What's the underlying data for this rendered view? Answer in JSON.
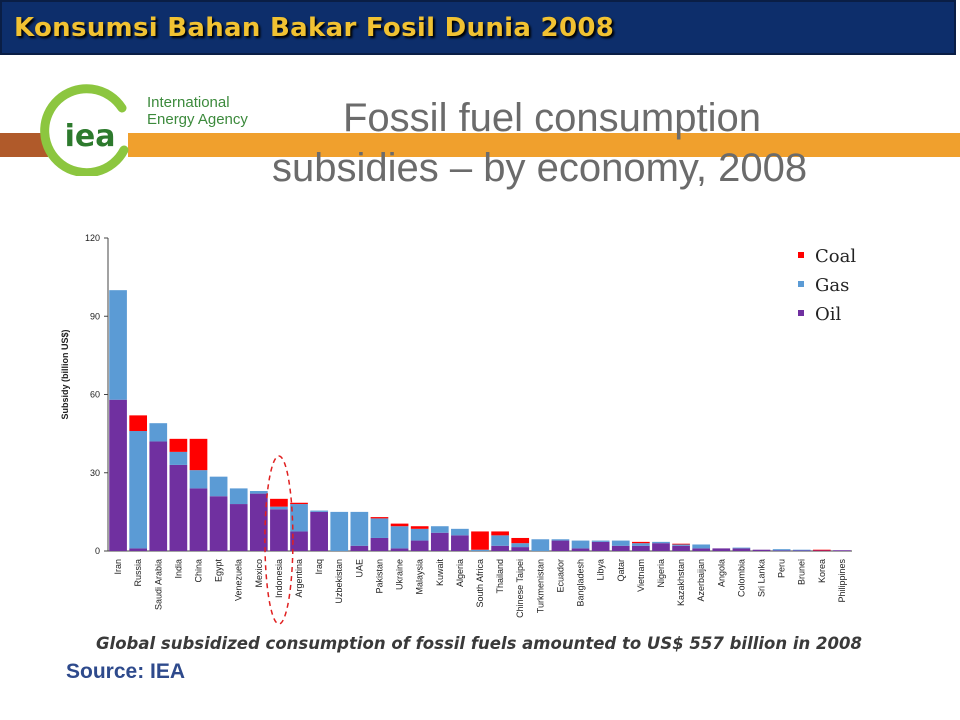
{
  "slide": {
    "title": "Konsumsi Bahan Bakar Fosil Dunia 2008",
    "colors": {
      "title_bar": "#0d2e6b",
      "title_text": "#f1c232",
      "accent_bar": "#f0a02d",
      "accent_left": "#b05a2a"
    }
  },
  "logo": {
    "text": "iea",
    "agency_line1": "International",
    "agency_line2": "Energy Agency",
    "icon": "iea-logo-icon"
  },
  "headline": {
    "line1": "Fossil fuel consumption",
    "line2": "subsidies – by economy, 2008"
  },
  "chart_data": {
    "type": "bar",
    "stacked": true,
    "ylabel": "Subsidy (billion US$)",
    "ylim": [
      0,
      120
    ],
    "yticks": [
      0,
      30,
      60,
      90,
      120
    ],
    "grid": false,
    "legend_placement": "top-right",
    "categories": [
      "Iran",
      "Russia",
      "Saudi Arabia",
      "India",
      "China",
      "Egypt",
      "Venezuela",
      "Mexico",
      "Indonesia",
      "Argentina",
      "Iraq",
      "Uzbekistan",
      "UAE",
      "Pakistan",
      "Ukraine",
      "Malaysia",
      "Kuwait",
      "Algeria",
      "South Africa",
      "Thailand",
      "Chinese Taipei",
      "Turkmenistan",
      "Ecuador",
      "Bangladesh",
      "Libya",
      "Qatar",
      "Vietnam",
      "Nigeria",
      "Kazakhstan",
      "Azerbaijan",
      "Angola",
      "Colombia",
      "Sri Lanka",
      "Peru",
      "Brunei",
      "Korea",
      "Philippines"
    ],
    "series": [
      {
        "name": "Oil",
        "color": "#7030a0",
        "values": [
          58,
          1,
          42,
          33,
          24,
          21,
          18,
          22,
          16,
          7.5,
          15,
          0,
          2,
          5,
          1,
          4,
          7,
          6,
          0,
          2,
          1.5,
          0,
          4,
          1,
          3.5,
          2,
          2,
          3,
          2,
          1,
          1,
          1,
          0.5,
          0.2,
          0.2,
          0.2,
          0.3
        ]
      },
      {
        "name": "Gas",
        "color": "#5b9bd5",
        "values": [
          42,
          45,
          7,
          5,
          7,
          7.5,
          6,
          1,
          1,
          10.5,
          0.5,
          15,
          13,
          7.5,
          8.5,
          4.5,
          2.5,
          2.5,
          0.5,
          4,
          1.5,
          4.5,
          0.5,
          3,
          0.5,
          2,
          1,
          0.5,
          0.5,
          1.5,
          0,
          0.3,
          0,
          0.5,
          0.3,
          0,
          0
        ]
      },
      {
        "name": "Coal",
        "color": "#ff0000",
        "values": [
          0,
          6,
          0,
          5,
          12,
          0,
          0,
          0,
          3,
          0.5,
          0,
          0,
          0,
          0.5,
          1,
          1,
          0,
          0,
          7,
          1.5,
          2,
          0,
          0,
          0,
          0,
          0,
          0.5,
          0,
          0.3,
          0,
          0,
          0,
          0,
          0,
          0,
          0.3,
          0
        ]
      }
    ],
    "highlight": {
      "category": "Indonesia",
      "style": "red dashed ellipse"
    }
  },
  "caption": "Global subsidized consumption of fossil fuels amounted to US$ 557 billion in 2008",
  "source": "Source: IEA"
}
